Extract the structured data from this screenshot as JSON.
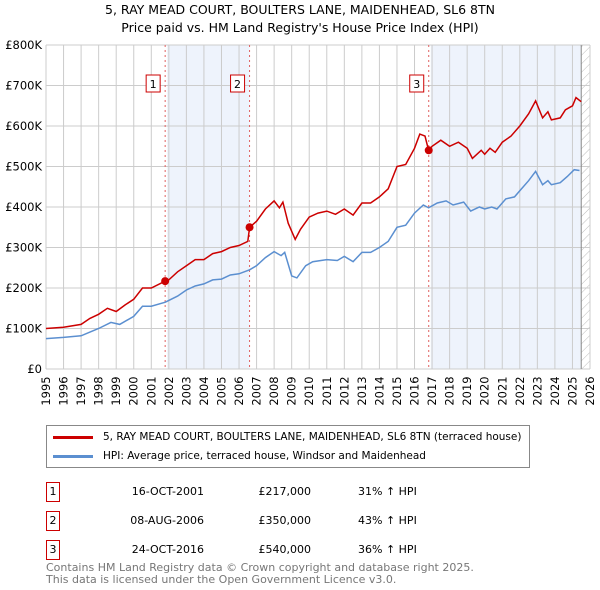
{
  "chart_data": {
    "type": "line",
    "title": "5, RAY MEAD COURT, BOULTERS LANE, MAIDENHEAD, SL6 8TN",
    "subtitle": "Price paid vs. HM Land Registry's House Price Index (HPI)",
    "xlim": [
      1995,
      2026
    ],
    "ylim": [
      0,
      800000
    ],
    "y_ticks": [
      "£0",
      "£100K",
      "£200K",
      "£300K",
      "£400K",
      "£500K",
      "£600K",
      "£700K",
      "£800K"
    ],
    "x_ticks": [
      "1995",
      "1996",
      "1997",
      "1998",
      "1999",
      "2000",
      "2001",
      "2002",
      "2003",
      "2004",
      "2005",
      "2006",
      "2007",
      "2008",
      "2009",
      "2010",
      "2011",
      "2012",
      "2013",
      "2014",
      "2015",
      "2016",
      "2017",
      "2018",
      "2019",
      "2020",
      "2021",
      "2022",
      "2023",
      "2024",
      "2025",
      "2026"
    ],
    "grid": true,
    "colors": {
      "property": "#cc0000",
      "hpi": "#5b8fd0",
      "shade": "#eef3fc"
    },
    "series": [
      {
        "name": "5, RAY MEAD COURT, BOULTERS LANE, MAIDENHEAD, SL6 8TN (terraced house)",
        "x": [
          1995,
          1996,
          1997,
          1997.5,
          1998,
          1998.5,
          1999,
          1999.5,
          2000,
          2000.5,
          2001,
          2001.8,
          2002,
          2002.5,
          2003,
          2003.5,
          2004,
          2004.5,
          2005,
          2005.5,
          2006,
          2006.5,
          2006.6,
          2007,
          2007.5,
          2008,
          2008.3,
          2008.5,
          2008.8,
          2009.2,
          2009.5,
          2010,
          2010.5,
          2011,
          2011.5,
          2012,
          2012.5,
          2013,
          2013.5,
          2014,
          2014.5,
          2015,
          2015.5,
          2016,
          2016.3,
          2016.6,
          2016.8,
          2017,
          2017.5,
          2018,
          2018.5,
          2019,
          2019.3,
          2019.8,
          2020,
          2020.3,
          2020.6,
          2021,
          2021.5,
          2022,
          2022.5,
          2022.9,
          2023.3,
          2023.6,
          2023.8,
          2024.3,
          2024.6,
          2025,
          2025.2,
          2025.5
        ],
        "values": [
          100,
          103,
          110,
          125,
          135,
          150,
          142,
          158,
          172,
          200,
          200,
          217,
          220,
          240,
          255,
          270,
          270,
          285,
          290,
          300,
          305,
          315,
          350,
          365,
          395,
          415,
          398,
          412,
          360,
          320,
          345,
          375,
          385,
          390,
          382,
          395,
          380,
          410,
          410,
          425,
          445,
          500,
          505,
          545,
          580,
          575,
          540,
          550,
          565,
          550,
          560,
          545,
          520,
          540,
          530,
          545,
          535,
          560,
          575,
          600,
          630,
          662,
          620,
          635,
          615,
          620,
          640,
          650,
          670,
          660
        ]
      },
      {
        "name": "HPI: Average price, terraced house, Windsor and Maidenhead",
        "x": [
          1995,
          1996,
          1997,
          1998,
          1998.7,
          1999.2,
          2000,
          2000.5,
          2001,
          2001.8,
          2002.5,
          2003,
          2003.5,
          2004,
          2004.5,
          2005,
          2005.5,
          2006,
          2006.6,
          2007,
          2007.5,
          2008,
          2008.4,
          2008.6,
          2009,
          2009.3,
          2009.8,
          2010.2,
          2011,
          2011.6,
          2012,
          2012.5,
          2013,
          2013.5,
          2014,
          2014.5,
          2015,
          2015.5,
          2016,
          2016.5,
          2016.8,
          2017.3,
          2017.8,
          2018.2,
          2018.8,
          2019.2,
          2019.7,
          2020,
          2020.4,
          2020.7,
          2021.2,
          2021.7,
          2022,
          2022.5,
          2022.9,
          2023.3,
          2023.6,
          2023.8,
          2024.3,
          2024.7,
          2025.1,
          2025.4
        ],
        "values": [
          75,
          78,
          82,
          100,
          115,
          110,
          130,
          155,
          155,
          165,
          180,
          195,
          205,
          210,
          220,
          222,
          232,
          235,
          245,
          255,
          275,
          290,
          280,
          288,
          230,
          225,
          255,
          265,
          270,
          268,
          278,
          265,
          288,
          288,
          300,
          315,
          350,
          355,
          385,
          405,
          398,
          410,
          415,
          405,
          412,
          390,
          400,
          395,
          400,
          395,
          420,
          425,
          440,
          465,
          488,
          455,
          465,
          455,
          460,
          475,
          492,
          490
        ]
      }
    ],
    "sales": [
      {
        "label": "1",
        "x": 2001.79,
        "value": 217000,
        "date": "16-OCT-2001",
        "price": "£217,000",
        "hpi": "31% ↑ HPI"
      },
      {
        "label": "2",
        "x": 2006.6,
        "value": 350000,
        "date": "08-AUG-2006",
        "price": "£350,000",
        "hpi": "43% ↑ HPI"
      },
      {
        "label": "3",
        "x": 2016.81,
        "value": 540000,
        "date": "24-OCT-2016",
        "price": "£540,000",
        "hpi": "36% ↑ HPI"
      }
    ]
  },
  "footer": {
    "line1": "Contains HM Land Registry data © Crown copyright and database right 2025.",
    "line2": "This data is licensed under the Open Government Licence v3.0."
  }
}
